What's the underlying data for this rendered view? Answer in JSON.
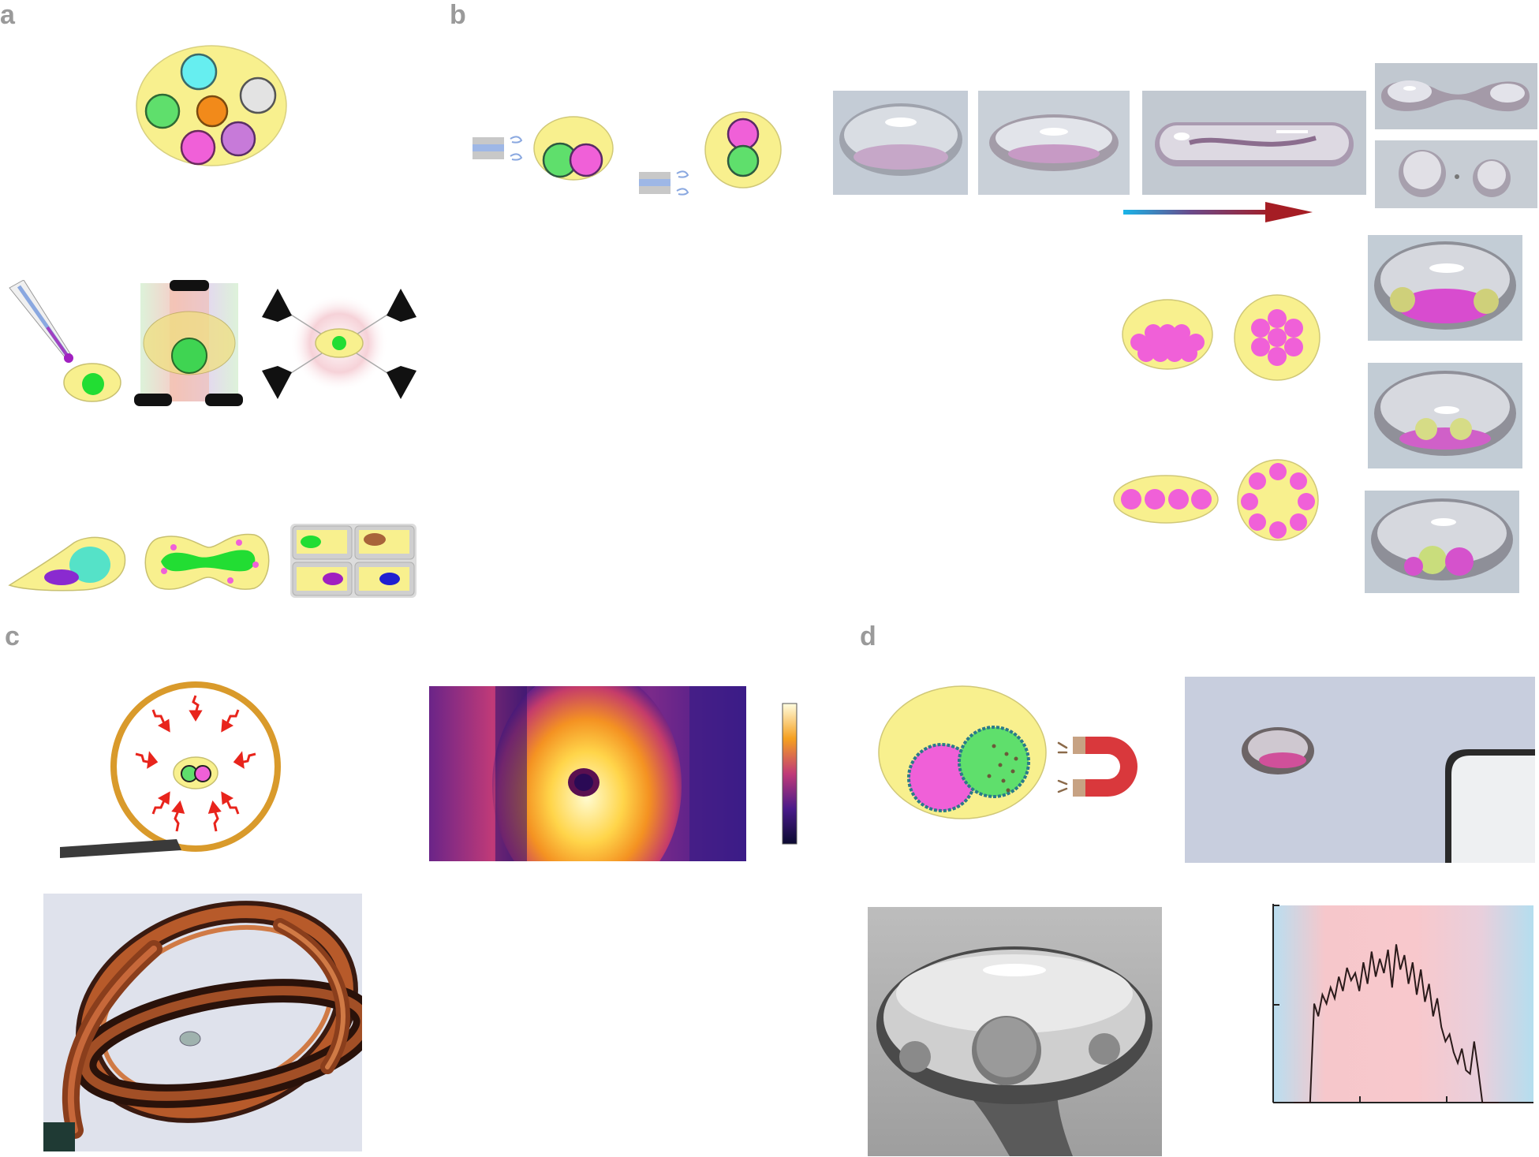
{
  "panels": {
    "a": "a",
    "b": "b",
    "c": "c",
    "d": "d"
  },
  "colors": {
    "cytoplasm_yellow": "#f8f08e",
    "nucleus_green": "#5fdf6c",
    "magenta": "#f060d8",
    "cyan": "#66eef0",
    "orange": "#f28a1a",
    "purple": "#c77ad9",
    "gray_light": "#e3e3e3",
    "copper": "#b75a2a",
    "arrow_red": "#e8241c",
    "magnet_red": "#d9383c",
    "gradient_blue": "#19b4e8",
    "gradient_dark_red": "#a51d24"
  },
  "icons": [
    "cell-with-organelles-icon",
    "micropipette-icon",
    "optical-tweezers-icon",
    "acoustic-tweezers-icon",
    "migrating-cell-icon",
    "dividing-cell-icon",
    "cell-array-icon",
    "nozzle-icon",
    "air-flow-icon",
    "heating-coil-icon",
    "thermal-colorbar-icon",
    "magnet-icon"
  ],
  "chart_data": {
    "type": "line",
    "title": "",
    "xlabel": "",
    "ylabel": "",
    "x": [
      0,
      1,
      2,
      3,
      4,
      5,
      6,
      7,
      8,
      9,
      10,
      11,
      12,
      13,
      14,
      15,
      16,
      17,
      18,
      19,
      20,
      21,
      22,
      23,
      24,
      25,
      26,
      27,
      28,
      29,
      30,
      31,
      32,
      33,
      34,
      35,
      36,
      37,
      38,
      39,
      40,
      41,
      42,
      43,
      44,
      45,
      46,
      47,
      48,
      49,
      50
    ],
    "series": [
      {
        "values": [
          0,
          0,
          0,
          0,
          0,
          0.55,
          0.48,
          0.6,
          0.55,
          0.64,
          0.58,
          0.7,
          0.62,
          0.75,
          0.68,
          0.72,
          0.62,
          0.78,
          0.66,
          0.84,
          0.7,
          0.8,
          0.72,
          0.85,
          0.64,
          0.88,
          0.74,
          0.82,
          0.66,
          0.78,
          0.6,
          0.74,
          0.56,
          0.66,
          0.48,
          0.58,
          0.42,
          0.34,
          0.38,
          0.28,
          0.22,
          0.3,
          0.18,
          0.16,
          0.34,
          0.18,
          0,
          0,
          0,
          0,
          0
        ]
      }
    ],
    "grid": false
  }
}
